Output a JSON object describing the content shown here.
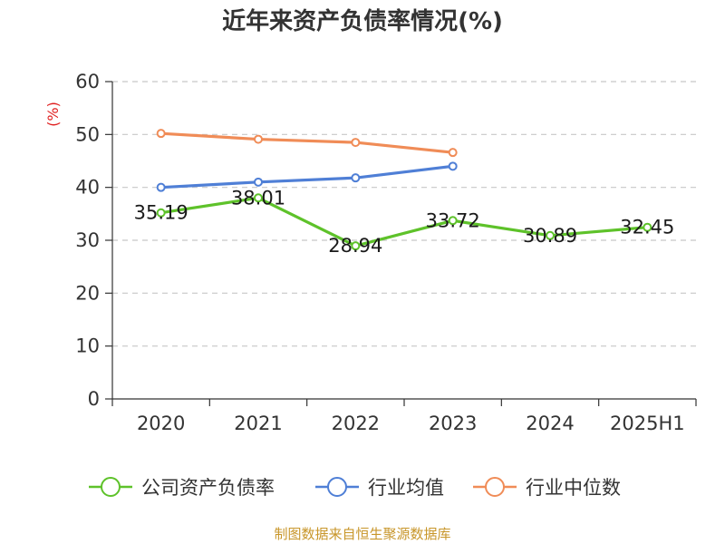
{
  "chart_data": {
    "type": "line",
    "title": "近年来资产负债率情况(%)",
    "ylabel": "(%)",
    "xlabel": "",
    "categories": [
      "2020",
      "2021",
      "2022",
      "2023",
      "2024",
      "2025H1"
    ],
    "ylim": [
      0,
      60
    ],
    "yticks": [
      0,
      10,
      20,
      30,
      40,
      50,
      60
    ],
    "grid": true,
    "legend_position": "bottom",
    "series": [
      {
        "name": "公司资产负债率",
        "color": "#5ec22a",
        "values": [
          35.19,
          38.01,
          28.94,
          33.72,
          30.89,
          32.45
        ],
        "show_labels": true
      },
      {
        "name": "行业均值",
        "color": "#4f7fd6",
        "values": [
          40.0,
          41.0,
          41.8,
          44.0,
          null,
          null
        ],
        "show_labels": false
      },
      {
        "name": "行业中位数",
        "color": "#f08c57",
        "values": [
          50.2,
          49.1,
          48.5,
          46.6,
          null,
          null
        ],
        "show_labels": false
      }
    ]
  },
  "source": "制图数据来自恒生聚源数据库"
}
